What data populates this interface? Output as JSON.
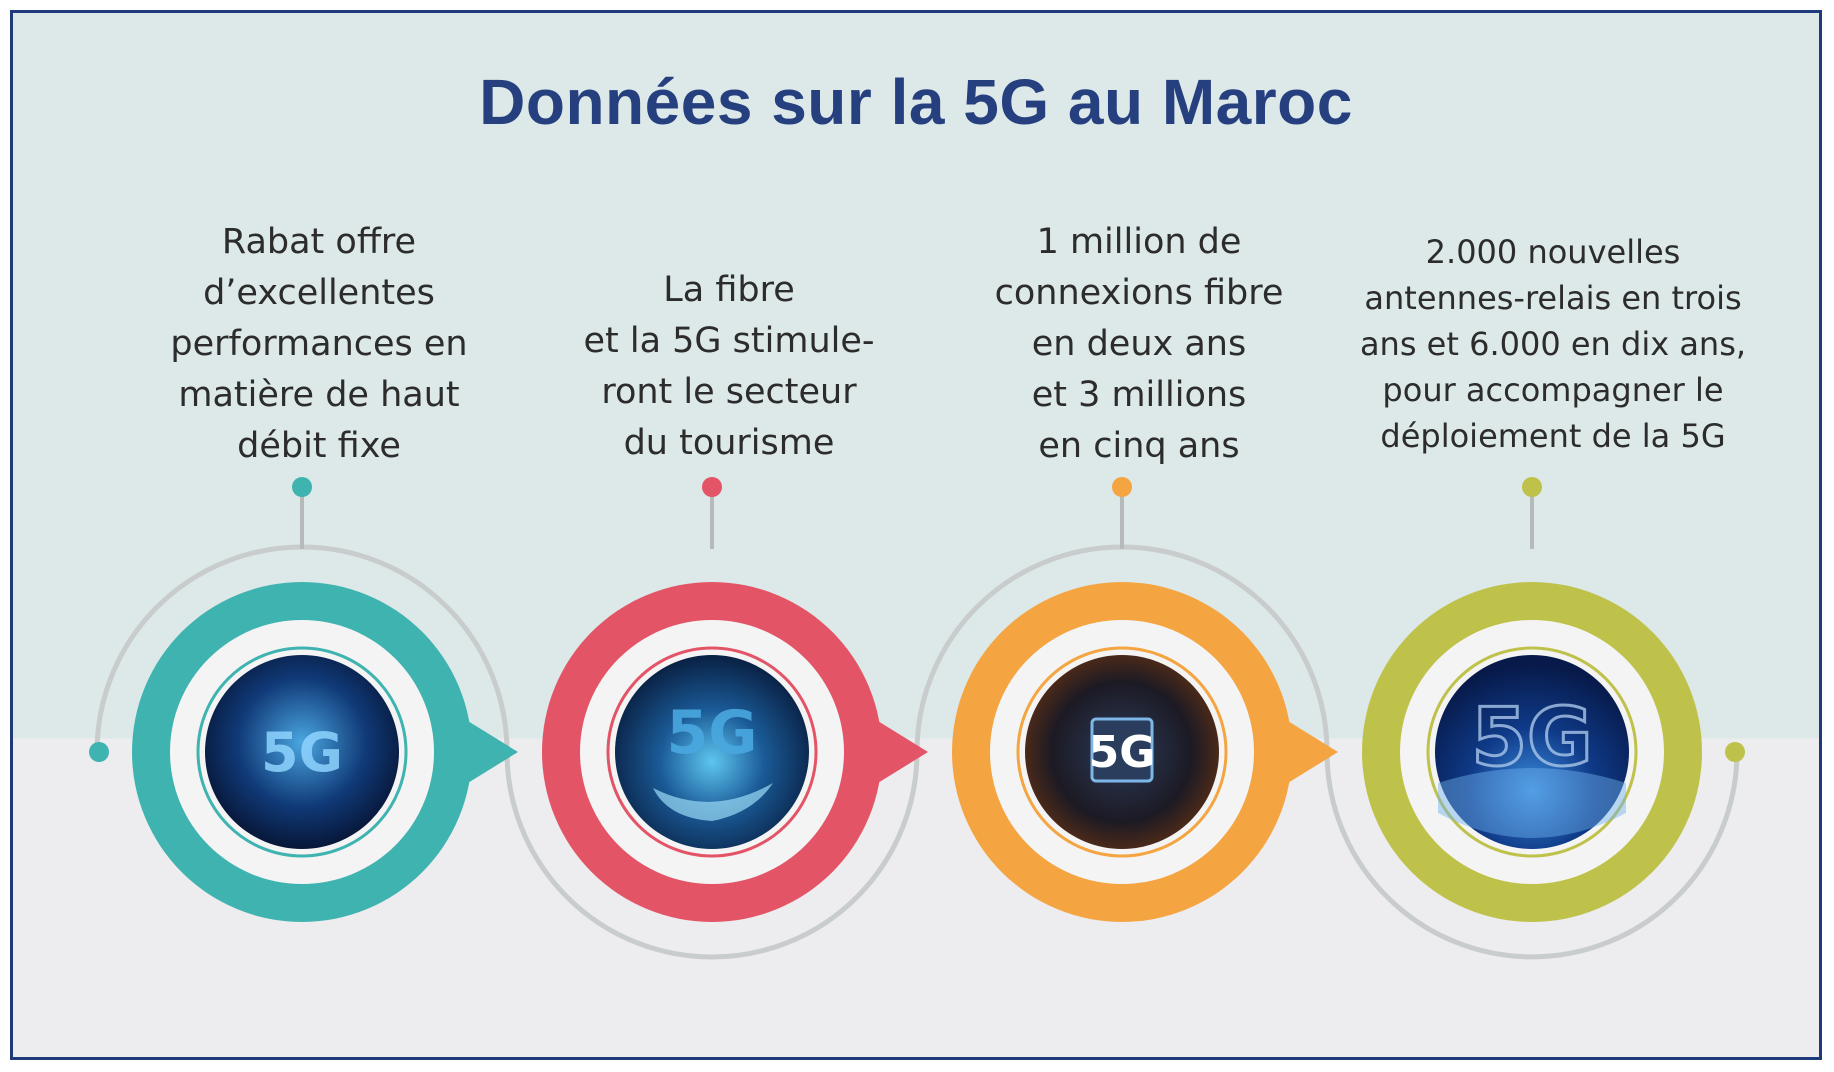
{
  "title": "Données sur la 5G au Maroc",
  "items": [
    {
      "caption": "Rabat offre\nd’excellentes\nperformances en\nmatière de haut\ndébit fixe",
      "color": "#3fb3b0",
      "image_label": "5G"
    },
    {
      "caption": "La fibre\net la 5G stimule-\nront le secteur\ndu tourisme",
      "color": "#e35566",
      "image_label": "5G"
    },
    {
      "caption": "1 million de\nconnexions fibre\nen deux ans\net 3 millions\nen cinq ans",
      "color": "#f4a542",
      "image_label": "5G"
    },
    {
      "caption": "2.000 nouvelles\nantennes-relais en trois\nans et 6.000 en dix ans,\npour accompagner le\ndéploiement de la 5G",
      "color": "#bfc24a",
      "image_label": "5G"
    }
  ]
}
